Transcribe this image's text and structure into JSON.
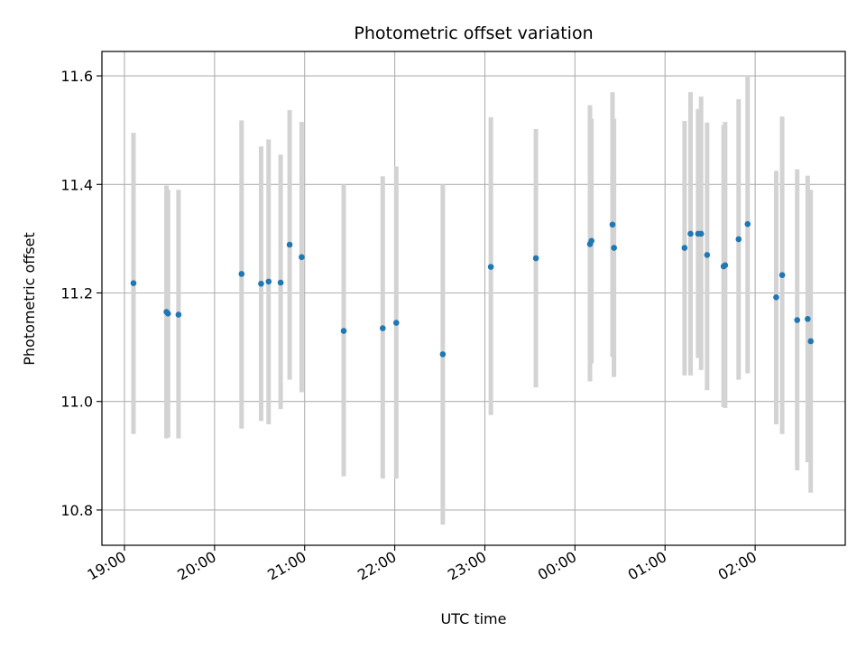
{
  "chart_data": {
    "type": "scatter",
    "title": "Photometric offset variation",
    "xlabel": "UTC time",
    "ylabel": "Photometric offset",
    "x_date": "2000-01-01",
    "xlim": [
      "18:45",
      "27:00"
    ],
    "ylim": [
      10.735,
      11.645
    ],
    "xticks": [
      "19:00",
      "20:00",
      "21:00",
      "22:00",
      "23:00",
      "00:00",
      "01:00",
      "02:00"
    ],
    "yticks": [
      "10.8",
      "11.0",
      "11.2",
      "11.4",
      "11.6"
    ],
    "grid": true,
    "colors": {
      "point": "#1f77b4",
      "errorbar": "#d3d3d3",
      "grid": "#b0b0b0"
    },
    "points": [
      {
        "t": "19:06",
        "y": 11.218,
        "lo": 10.94,
        "hi": 11.495
      },
      {
        "t": "19:28",
        "y": 11.165,
        "lo": 10.932,
        "hi": 11.398
      },
      {
        "t": "19:29",
        "y": 11.162,
        "lo": 10.934,
        "hi": 11.39
      },
      {
        "t": "19:36",
        "y": 11.16,
        "lo": 10.932,
        "hi": 11.39
      },
      {
        "t": "20:18",
        "y": 11.235,
        "lo": 10.95,
        "hi": 11.518
      },
      {
        "t": "20:31",
        "y": 11.217,
        "lo": 10.964,
        "hi": 11.47
      },
      {
        "t": "20:36",
        "y": 11.221,
        "lo": 10.958,
        "hi": 11.483
      },
      {
        "t": "20:44",
        "y": 11.219,
        "lo": 10.986,
        "hi": 11.455
      },
      {
        "t": "20:50",
        "y": 11.289,
        "lo": 11.04,
        "hi": 11.537
      },
      {
        "t": "20:58",
        "y": 11.266,
        "lo": 11.017,
        "hi": 11.515
      },
      {
        "t": "21:26",
        "y": 11.13,
        "lo": 10.862,
        "hi": 11.4
      },
      {
        "t": "21:52",
        "y": 11.135,
        "lo": 10.858,
        "hi": 11.415
      },
      {
        "t": "22:01",
        "y": 11.145,
        "lo": 10.858,
        "hi": 11.433
      },
      {
        "t": "22:32",
        "y": 11.087,
        "lo": 10.773,
        "hi": 11.4
      },
      {
        "t": "23:04",
        "y": 11.248,
        "lo": 10.975,
        "hi": 11.524
      },
      {
        "t": "23:34",
        "y": 11.264,
        "lo": 11.026,
        "hi": 11.502
      },
      {
        "t": "24:10",
        "y": 11.29,
        "lo": 11.037,
        "hi": 11.546
      },
      {
        "t": "24:11",
        "y": 11.296,
        "lo": 11.07,
        "hi": 11.521
      },
      {
        "t": "24:25",
        "y": 11.326,
        "lo": 11.082,
        "hi": 11.57
      },
      {
        "t": "24:26",
        "y": 11.283,
        "lo": 11.045,
        "hi": 11.521
      },
      {
        "t": "25:13",
        "y": 11.283,
        "lo": 11.048,
        "hi": 11.517
      },
      {
        "t": "25:17",
        "y": 11.309,
        "lo": 11.048,
        "hi": 11.57
      },
      {
        "t": "25:22",
        "y": 11.309,
        "lo": 11.08,
        "hi": 11.539
      },
      {
        "t": "25:24",
        "y": 11.309,
        "lo": 11.058,
        "hi": 11.562
      },
      {
        "t": "25:28",
        "y": 11.27,
        "lo": 11.021,
        "hi": 11.514
      },
      {
        "t": "25:39",
        "y": 11.249,
        "lo": 10.99,
        "hi": 11.509
      },
      {
        "t": "25:40",
        "y": 11.251,
        "lo": 10.988,
        "hi": 11.515
      },
      {
        "t": "25:49",
        "y": 11.299,
        "lo": 11.04,
        "hi": 11.557
      },
      {
        "t": "25:55",
        "y": 11.327,
        "lo": 11.052,
        "hi": 11.6
      },
      {
        "t": "26:14",
        "y": 11.192,
        "lo": 10.958,
        "hi": 11.425
      },
      {
        "t": "26:18",
        "y": 11.233,
        "lo": 10.94,
        "hi": 11.525
      },
      {
        "t": "26:28",
        "y": 11.15,
        "lo": 10.873,
        "hi": 11.428
      },
      {
        "t": "26:35",
        "y": 11.152,
        "lo": 10.888,
        "hi": 11.416
      },
      {
        "t": "26:37",
        "y": 11.111,
        "lo": 10.832,
        "hi": 11.39
      }
    ]
  }
}
